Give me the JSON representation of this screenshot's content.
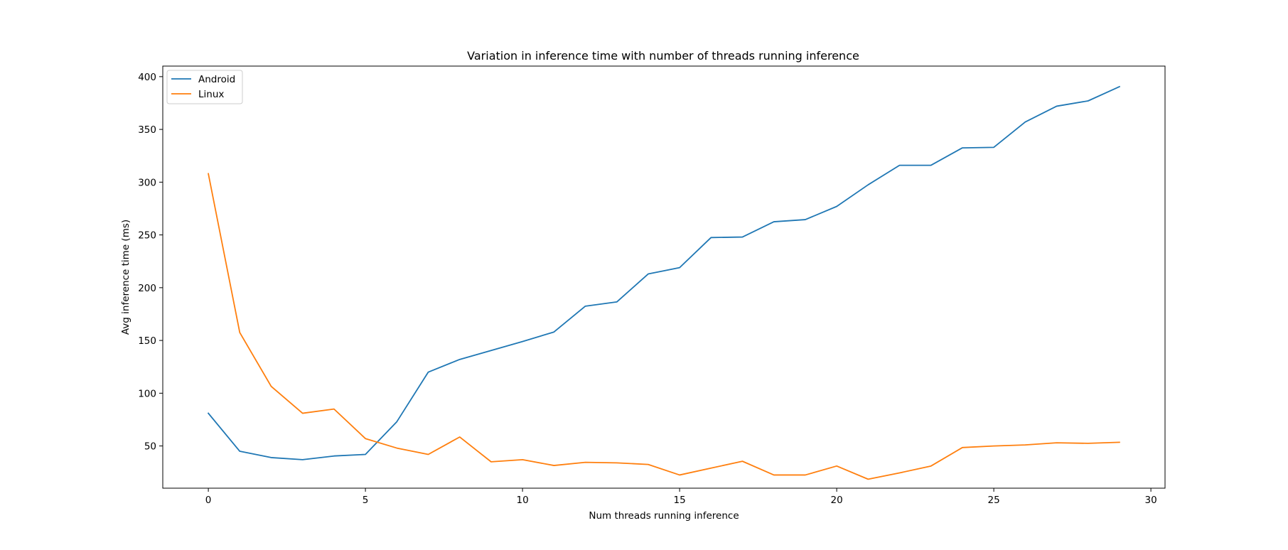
{
  "chart_data": {
    "type": "line",
    "title": "Variation in inference time with number of threads running inference",
    "xlabel": "Num threads running inference",
    "ylabel": "Avg inference time (ms)",
    "xlim": [
      -1.45,
      30.45
    ],
    "ylim": [
      10,
      410
    ],
    "xticks": [
      0,
      5,
      10,
      15,
      20,
      25,
      30
    ],
    "yticks": [
      50,
      100,
      150,
      200,
      250,
      300,
      350,
      400
    ],
    "grid": false,
    "legend_position": "top-left",
    "x": [
      0,
      1,
      2,
      3,
      4,
      5,
      6,
      7,
      8,
      9,
      10,
      11,
      12,
      13,
      14,
      15,
      16,
      17,
      18,
      19,
      20,
      21,
      22,
      23,
      24,
      25,
      26,
      27,
      28,
      29
    ],
    "series": [
      {
        "name": "Android",
        "color": "#1f77b4",
        "values": [
          81,
          45,
          39,
          37,
          40.5,
          42,
          73,
          120,
          132,
          140.5,
          149,
          158,
          182.5,
          186.5,
          213,
          219,
          247.5,
          248,
          262.5,
          264.5,
          277,
          297.5,
          316,
          316,
          332.5,
          333,
          357,
          372,
          377,
          390.5
        ]
      },
      {
        "name": "Linux",
        "color": "#ff7f0e",
        "values": [
          308,
          157.5,
          106.5,
          81,
          85,
          57,
          48,
          42,
          58.5,
          35,
          37,
          31.5,
          34.5,
          34,
          32.5,
          22.5,
          29,
          35.5,
          22.5,
          22.5,
          31,
          18.5,
          24.5,
          31,
          48.5,
          50,
          51,
          53,
          52.5,
          53.5
        ]
      }
    ]
  }
}
